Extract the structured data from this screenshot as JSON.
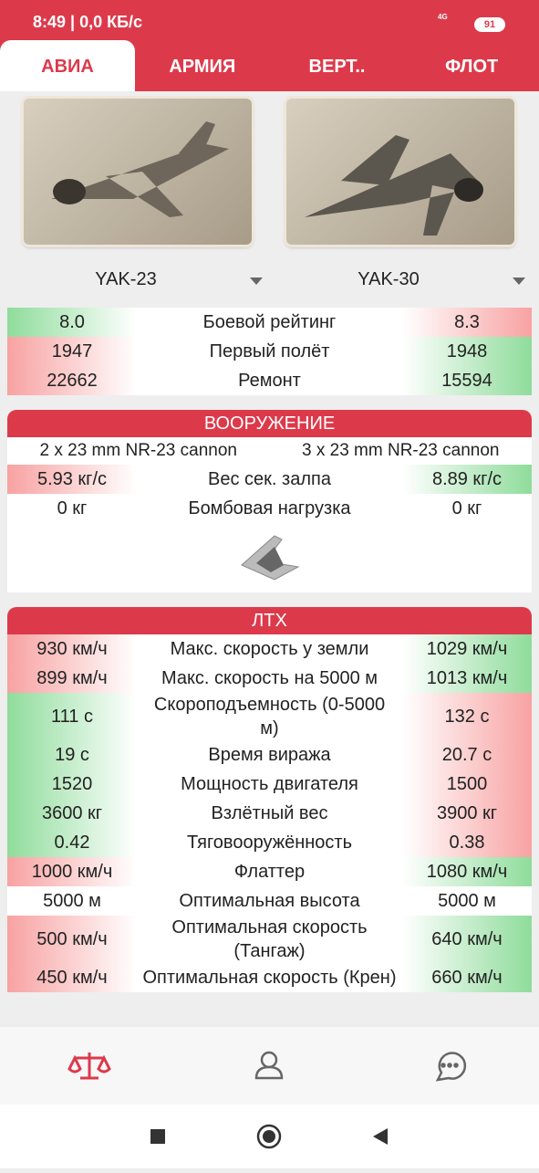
{
  "status_bar": {
    "time": "8:49",
    "speed": "0,0 КБ/с",
    "network": "4G",
    "battery": "91"
  },
  "tabs": [
    "АВИА",
    "АРМИЯ",
    "ВЕРТ..",
    "ФЛОТ"
  ],
  "vehicles": [
    "YAK-23",
    "YAK-30"
  ],
  "summary": {
    "rows": [
      {
        "left": "8.0",
        "label": "Боевой рейтинг",
        "right": "8.3",
        "colors": [
          "green",
          "red"
        ]
      },
      {
        "left": "1947",
        "label": "Первый полёт",
        "right": "1948",
        "colors": [
          "red",
          "green"
        ]
      },
      {
        "left": "22662",
        "label": "Ремонт",
        "right": "15594",
        "colors": [
          "red",
          "green"
        ]
      }
    ]
  },
  "armament": {
    "title": "ВООРУЖЕНИЕ",
    "weapons": [
      "2 x 23 mm NR-23 cannon",
      "3 x 23 mm NR-23 cannon"
    ],
    "rows": [
      {
        "left": "5.93 кг/с",
        "label": "Вес сек. залпа",
        "right": "8.89 кг/с",
        "colors": [
          "red",
          "green"
        ]
      },
      {
        "left": "0 кг",
        "label": "Бомбовая нагрузка",
        "right": "0 кг",
        "colors": [
          "white",
          "white"
        ]
      }
    ]
  },
  "performance": {
    "title": "ЛТХ",
    "rows": [
      {
        "left": "930 км/ч",
        "label": "Макс. скорость у земли",
        "right": "1029 км/ч",
        "colors": [
          "red",
          "green"
        ]
      },
      {
        "left": "899 км/ч",
        "label": "Макс. скорость на 5000 м",
        "right": "1013 км/ч",
        "colors": [
          "red",
          "green"
        ]
      },
      {
        "left": "111 с",
        "label": "Скороподъемность (0-5000 м)",
        "right": "132 с",
        "colors": [
          "green",
          "red"
        ]
      },
      {
        "left": "19 с",
        "label": "Время виража",
        "right": "20.7 с",
        "colors": [
          "green",
          "red"
        ]
      },
      {
        "left": "1520",
        "label": "Мощность двигателя",
        "right": "1500",
        "colors": [
          "green",
          "red"
        ]
      },
      {
        "left": "3600 кг",
        "label": "Взлётный вес",
        "right": "3900 кг",
        "colors": [
          "green",
          "red"
        ]
      },
      {
        "left": "0.42",
        "label": "Тяговооружённость",
        "right": "0.38",
        "colors": [
          "green",
          "red"
        ]
      },
      {
        "left": "1000 км/ч",
        "label": "Флаттер",
        "right": "1080 км/ч",
        "colors": [
          "red",
          "green"
        ]
      },
      {
        "left": "5000 м",
        "label": "Оптимальная высота",
        "right": "5000 м",
        "colors": [
          "white",
          "white"
        ]
      },
      {
        "left": "500 км/ч",
        "label": "Оптимальная скорость (Тангаж)",
        "right": "640 км/ч",
        "colors": [
          "red",
          "green"
        ]
      },
      {
        "left": "450 км/ч",
        "label": "Оптимальная скорость (Крен)",
        "right": "660 км/ч",
        "colors": [
          "red",
          "green"
        ]
      }
    ]
  }
}
